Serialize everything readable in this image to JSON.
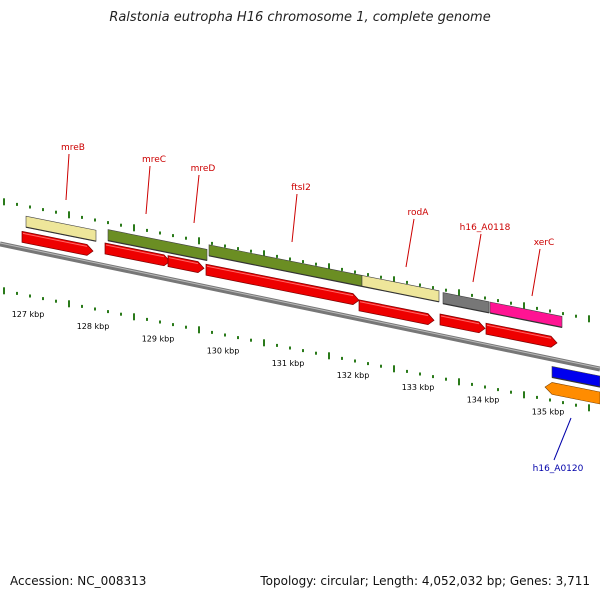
{
  "title": "Ralstonia eutropha H16 chromosome 1, complete genome",
  "footer": {
    "accession": "Accession: NC_008313",
    "info": "Topology: circular; Length: 4,052,032 bp; Genes: 3,711"
  },
  "colors": {
    "backbone": "#777777",
    "tick": "#2a7a1a",
    "cds": "#ee0000",
    "label_red": "#cc0000",
    "label_blue": "#0000aa"
  },
  "scale": [
    {
      "label": "127 kbp"
    },
    {
      "label": "128 kbp"
    },
    {
      "label": "129 kbp"
    },
    {
      "label": "130 kbp"
    },
    {
      "label": "131 kbp"
    },
    {
      "label": "132 kbp"
    },
    {
      "label": "133 kbp"
    },
    {
      "label": "134 kbp"
    },
    {
      "label": "135 kbp"
    }
  ],
  "genes": [
    {
      "name": "mreB",
      "color": "#eee69a",
      "label_color": "#cc0000"
    },
    {
      "name": "mreC",
      "color": "#6b8e23",
      "label_color": "#cc0000"
    },
    {
      "name": "mreD",
      "color": "#6b8e23",
      "label_color": "#cc0000"
    },
    {
      "name": "ftsI2",
      "color": "#6b8e23",
      "label_color": "#cc0000"
    },
    {
      "name": "rodA",
      "color": "#eee69a",
      "label_color": "#cc0000"
    },
    {
      "name": "h16_A0118",
      "color": "#777777",
      "label_color": "#cc0000"
    },
    {
      "name": "xerC",
      "color": "#ff1493",
      "label_color": "#cc0000"
    },
    {
      "name": "h16_A0120",
      "color": "#0000ee",
      "label_color": "#0000aa"
    }
  ]
}
